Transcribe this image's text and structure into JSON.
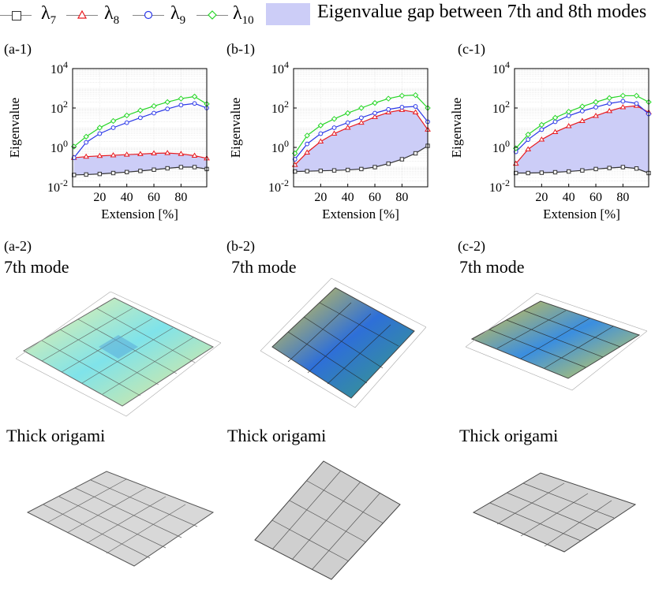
{
  "legend": {
    "items": [
      {
        "symbol": "λ",
        "sub": "7",
        "color": "#333333",
        "marker": "square"
      },
      {
        "symbol": "λ",
        "sub": "8",
        "color": "#e8191e",
        "marker": "triangle"
      },
      {
        "symbol": "λ",
        "sub": "9",
        "color": "#2a37e8",
        "marker": "circle"
      },
      {
        "symbol": "λ",
        "sub": "10",
        "color": "#28d628",
        "marker": "diamond"
      }
    ],
    "gap_label": "Eigenvalue gap between 7th and 8th modes",
    "gap_color": "#cccdf7"
  },
  "panels": [
    {
      "label": "(a-1)",
      "mode_label_tag": "(a-2)",
      "mode_title": "7th mode",
      "thick_title": "Thick origami"
    },
    {
      "label": "(b-1)",
      "mode_label_tag": "(b-2)",
      "mode_title": "7th mode",
      "thick_title": "Thick origami"
    },
    {
      "label": "(c-1)",
      "mode_label_tag": "(c-2)",
      "mode_title": "7th mode",
      "thick_title": "Thick origami"
    }
  ],
  "chart_data": [
    {
      "type": "line",
      "title": "(a-1)",
      "xlabel": "Extension [%]",
      "ylabel": "Eigenvalue",
      "yscale": "log",
      "ylim": [
        0.01,
        10000
      ],
      "xlim": [
        0,
        99
      ],
      "xticks": [
        20,
        40,
        60,
        80
      ],
      "yticks": [
        "10^-2",
        "10^0",
        "10^2",
        "10^4"
      ],
      "x": [
        1,
        10,
        20,
        30,
        40,
        50,
        60,
        70,
        80,
        90,
        99
      ],
      "series": [
        {
          "name": "λ7",
          "values": [
            0.04,
            0.042,
            0.045,
            0.05,
            0.056,
            0.064,
            0.074,
            0.087,
            0.1,
            0.1,
            0.08
          ]
        },
        {
          "name": "λ8",
          "values": [
            0.3,
            0.34,
            0.37,
            0.4,
            0.43,
            0.46,
            0.5,
            0.52,
            0.47,
            0.38,
            0.28
          ]
        },
        {
          "name": "λ9",
          "values": [
            0.3,
            1.8,
            5,
            10,
            18,
            32,
            55,
            90,
            140,
            170,
            100
          ]
        },
        {
          "name": "λ10",
          "values": [
            1.1,
            3.5,
            10,
            22,
            42,
            75,
            125,
            200,
            300,
            380,
            160
          ]
        }
      ]
    },
    {
      "type": "line",
      "title": "(b-1)",
      "xlabel": "Extension [%]",
      "ylabel": "Eigenvalue",
      "yscale": "log",
      "ylim": [
        0.01,
        10000
      ],
      "xlim": [
        0,
        99
      ],
      "xticks": [
        20,
        40,
        60,
        80
      ],
      "yticks": [
        "10^-2",
        "10^0",
        "10^2",
        "10^4"
      ],
      "x": [
        1,
        10,
        20,
        30,
        40,
        50,
        60,
        70,
        80,
        90,
        99
      ],
      "series": [
        {
          "name": "λ7",
          "values": [
            0.06,
            0.062,
            0.065,
            0.068,
            0.072,
            0.08,
            0.1,
            0.15,
            0.25,
            0.5,
            1.2
          ]
        },
        {
          "name": "λ8",
          "values": [
            0.13,
            0.55,
            2,
            5,
            10,
            18,
            35,
            60,
            80,
            60,
            8
          ]
        },
        {
          "name": "λ9",
          "values": [
            0.25,
            1.5,
            5,
            10,
            18,
            32,
            55,
            85,
            110,
            120,
            20
          ]
        },
        {
          "name": "λ10",
          "values": [
            0.5,
            4,
            13,
            28,
            55,
            100,
            180,
            300,
            420,
            450,
            100
          ]
        }
      ]
    },
    {
      "type": "line",
      "title": "(c-1)",
      "xlabel": "Extension [%]",
      "ylabel": "Eigenvalue",
      "yscale": "log",
      "ylim": [
        0.01,
        10000
      ],
      "xlim": [
        0,
        99
      ],
      "xticks": [
        20,
        40,
        60,
        80
      ],
      "yticks": [
        "10^-2",
        "10^0",
        "10^2",
        "10^4"
      ],
      "x": [
        1,
        10,
        20,
        30,
        40,
        50,
        60,
        70,
        80,
        90,
        99
      ],
      "series": [
        {
          "name": "λ7",
          "values": [
            0.05,
            0.05,
            0.052,
            0.055,
            0.06,
            0.068,
            0.08,
            0.09,
            0.1,
            0.085,
            0.05
          ]
        },
        {
          "name": "λ8",
          "values": [
            0.15,
            0.8,
            2.5,
            6,
            12,
            22,
            40,
            70,
            110,
            130,
            60
          ]
        },
        {
          "name": "λ9",
          "values": [
            0.6,
            2.5,
            8,
            20,
            40,
            70,
            110,
            170,
            220,
            170,
            50
          ]
        },
        {
          "name": "λ10",
          "values": [
            0.9,
            4.5,
            14,
            32,
            65,
            120,
            200,
            320,
            420,
            420,
            200
          ]
        }
      ]
    }
  ]
}
